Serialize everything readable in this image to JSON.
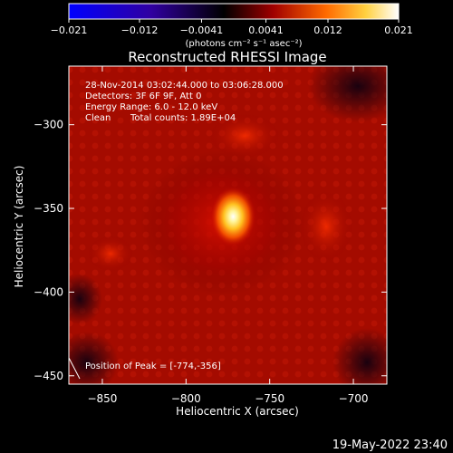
{
  "chart_data": {
    "type": "heatmap",
    "title": "Reconstructed RHESSI Image",
    "xlabel": "Heliocentric X (arcsec)",
    "ylabel": "Heliocentric Y (arcsec)",
    "xlim": [
      -870,
      -680
    ],
    "ylim": [
      -455,
      -265
    ],
    "x_ticks": [
      -850,
      -800,
      -750,
      -700
    ],
    "y_ticks": [
      -450,
      -400,
      -350,
      -300
    ],
    "x_tick_labels": [
      "−850",
      "−800",
      "−750",
      "−700"
    ],
    "y_tick_labels": [
      "−450",
      "−400",
      "−350",
      "−300"
    ],
    "colorbar": {
      "range": [
        -0.021,
        0.021
      ],
      "ticks": [
        -0.021,
        -0.012,
        -0.0041,
        0.0041,
        0.012,
        0.021
      ],
      "tick_labels": [
        "−0.021",
        "−0.012",
        "−0.0041",
        "0.0041",
        "0.012",
        "0.021"
      ],
      "units": "(photons cm⁻² s⁻¹ asec⁻²)",
      "colormap": [
        "#0000ff",
        "#000000",
        "#cc0000",
        "#ff8800",
        "#ffff55",
        "#ffffff"
      ]
    },
    "peak": {
      "x": -774,
      "y": -356,
      "value": 0.021
    },
    "annotations": [
      "28-Nov-2014 03:02:44.000 to 03:06:28.000",
      "Detectors: 3F 6F 9F, Att 0",
      "Energy Range: 6.0 - 12.0 keV",
      "Clean",
      "Total counts: 1.89E+04",
      "Position of Peak = [-774,-356]"
    ],
    "footer_timestamp": "19-May-2022 23:40"
  }
}
